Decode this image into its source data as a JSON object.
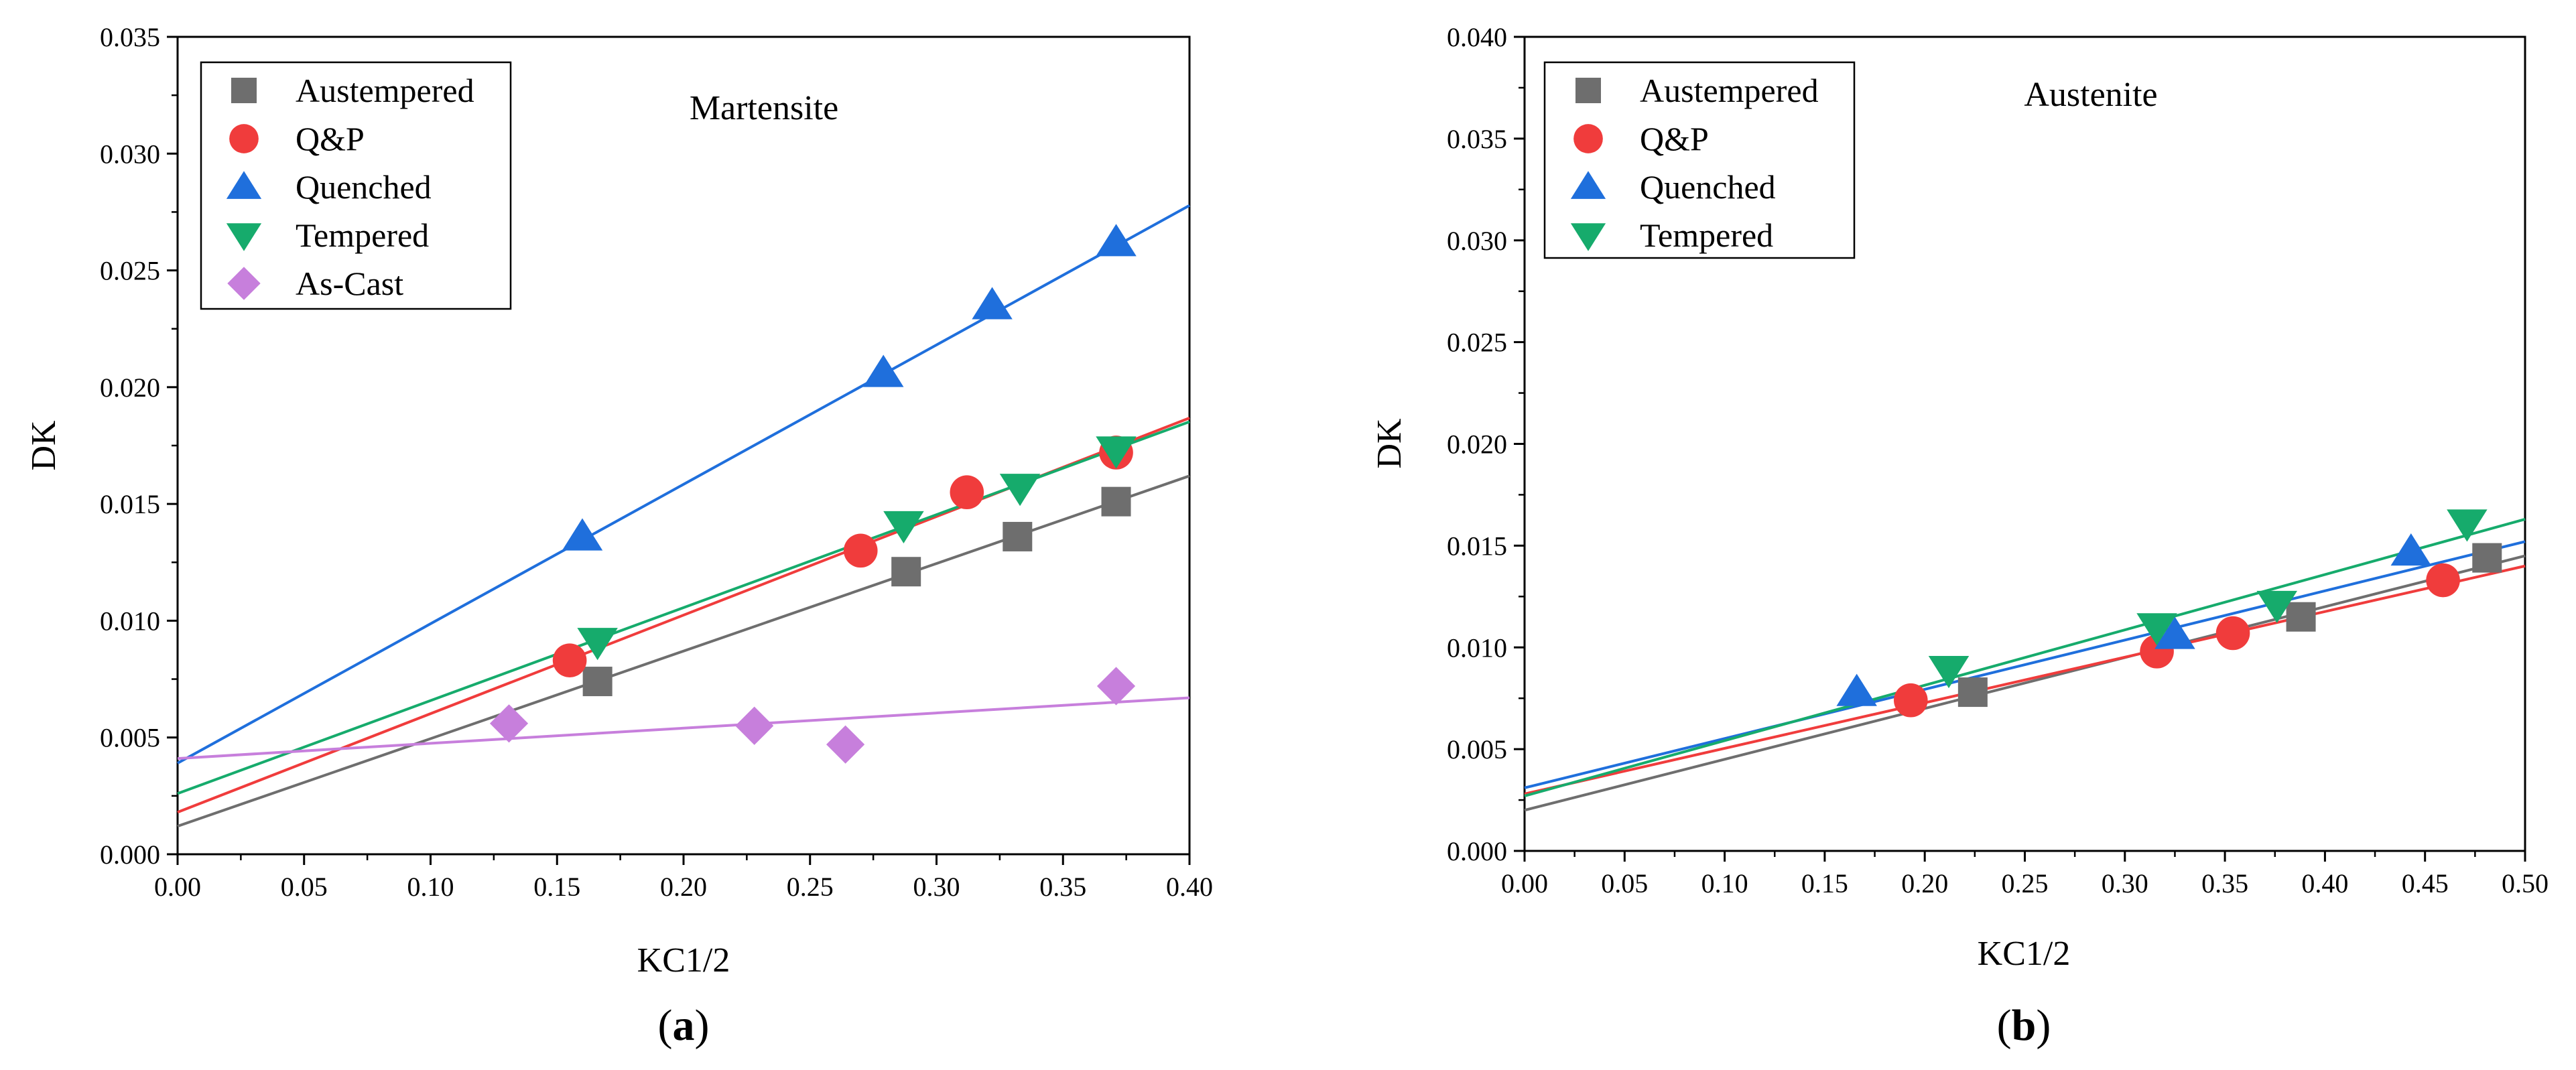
{
  "chart_data": [
    {
      "type": "scatter",
      "panel": "a",
      "annotation": "Martensite",
      "xlabel": "KC1/2",
      "ylabel": "DK",
      "xlim": [
        0.0,
        0.4
      ],
      "ylim": [
        0.0,
        0.035
      ],
      "xticks": [
        "0.00",
        "0.05",
        "0.10",
        "0.15",
        "0.20",
        "0.25",
        "0.30",
        "0.35",
        "0.40"
      ],
      "yticks": [
        "0.000",
        "0.005",
        "0.010",
        "0.015",
        "0.020",
        "0.025",
        "0.030",
        "0.035"
      ],
      "legend_position": "top-left",
      "series": [
        {
          "name": "Austempered",
          "marker": "square",
          "color": "#6e6e6e",
          "x": [
            0.166,
            0.288,
            0.332,
            0.371
          ],
          "y": [
            0.0074,
            0.0121,
            0.0136,
            0.0151
          ],
          "fit": {
            "y0": 0.0012,
            "slope": 0.0375
          }
        },
        {
          "name": "Q&P",
          "marker": "circle",
          "color": "#f03c3c",
          "x": [
            0.155,
            0.27,
            0.312,
            0.371
          ],
          "y": [
            0.0083,
            0.013,
            0.0155,
            0.0172
          ],
          "fit": {
            "y0": 0.0018,
            "slope": 0.0422
          }
        },
        {
          "name": "Quenched",
          "marker": "triangle-up",
          "color": "#1f6fdc",
          "x": [
            0.16,
            0.279,
            0.322,
            0.371
          ],
          "y": [
            0.0136,
            0.0206,
            0.0235,
            0.0262
          ],
          "fit": {
            "y0": 0.0039,
            "slope": 0.0597
          }
        },
        {
          "name": "Tempered",
          "marker": "triangle-down",
          "color": "#16ab6c",
          "x": [
            0.166,
            0.287,
            0.333,
            0.371
          ],
          "y": [
            0.0091,
            0.0141,
            0.0157,
            0.0173
          ],
          "fit": {
            "y0": 0.0026,
            "slope": 0.0398
          }
        },
        {
          "name": "As-Cast",
          "marker": "diamond",
          "color": "#c77fdc",
          "x": [
            0.131,
            0.228,
            0.264,
            0.371
          ],
          "y": [
            0.0056,
            0.0055,
            0.0047,
            0.0072
          ],
          "fit": {
            "y0": 0.0041,
            "slope": 0.0065
          }
        }
      ]
    },
    {
      "type": "scatter",
      "panel": "b",
      "annotation": "Austenite",
      "xlabel": "KC1/2",
      "ylabel": "DK",
      "xlim": [
        0.0,
        0.5
      ],
      "ylim": [
        0.0,
        0.04
      ],
      "xticks": [
        "0.00",
        "0.05",
        "0.10",
        "0.15",
        "0.20",
        "0.25",
        "0.30",
        "0.35",
        "0.40",
        "0.45",
        "0.50"
      ],
      "yticks": [
        "0.000",
        "0.005",
        "0.010",
        "0.015",
        "0.020",
        "0.025",
        "0.030",
        "0.035",
        "0.040"
      ],
      "legend_position": "top-left",
      "series": [
        {
          "name": "Austempered",
          "marker": "square",
          "color": "#6e6e6e",
          "x": [
            0.224,
            0.388,
            0.481
          ],
          "y": [
            0.0078,
            0.0115,
            0.0144
          ],
          "fit": {
            "y0": 0.002,
            "slope": 0.025
          }
        },
        {
          "name": "Q&P",
          "marker": "circle",
          "color": "#f03c3c",
          "x": [
            0.193,
            0.316,
            0.354,
            0.459
          ],
          "y": [
            0.0074,
            0.0098,
            0.0107,
            0.0133
          ],
          "fit": {
            "y0": 0.0028,
            "slope": 0.0224
          }
        },
        {
          "name": "Quenched",
          "marker": "triangle-up",
          "color": "#1f6fdc",
          "x": [
            0.166,
            0.325,
            0.443
          ],
          "y": [
            0.0078,
            0.0106,
            0.0147
          ],
          "fit": {
            "y0": 0.0031,
            "slope": 0.0242
          }
        },
        {
          "name": "Tempered",
          "marker": "triangle-down",
          "color": "#16ab6c",
          "x": [
            0.212,
            0.316,
            0.376,
            0.471
          ],
          "y": [
            0.0089,
            0.011,
            0.0121,
            0.0161
          ],
          "fit": {
            "y0": 0.0027,
            "slope": 0.0272
          }
        }
      ]
    }
  ],
  "panel_labels": [
    {
      "open": "(",
      "letter": "a",
      "close": ")"
    },
    {
      "open": "(",
      "letter": "b",
      "close": ")"
    }
  ]
}
